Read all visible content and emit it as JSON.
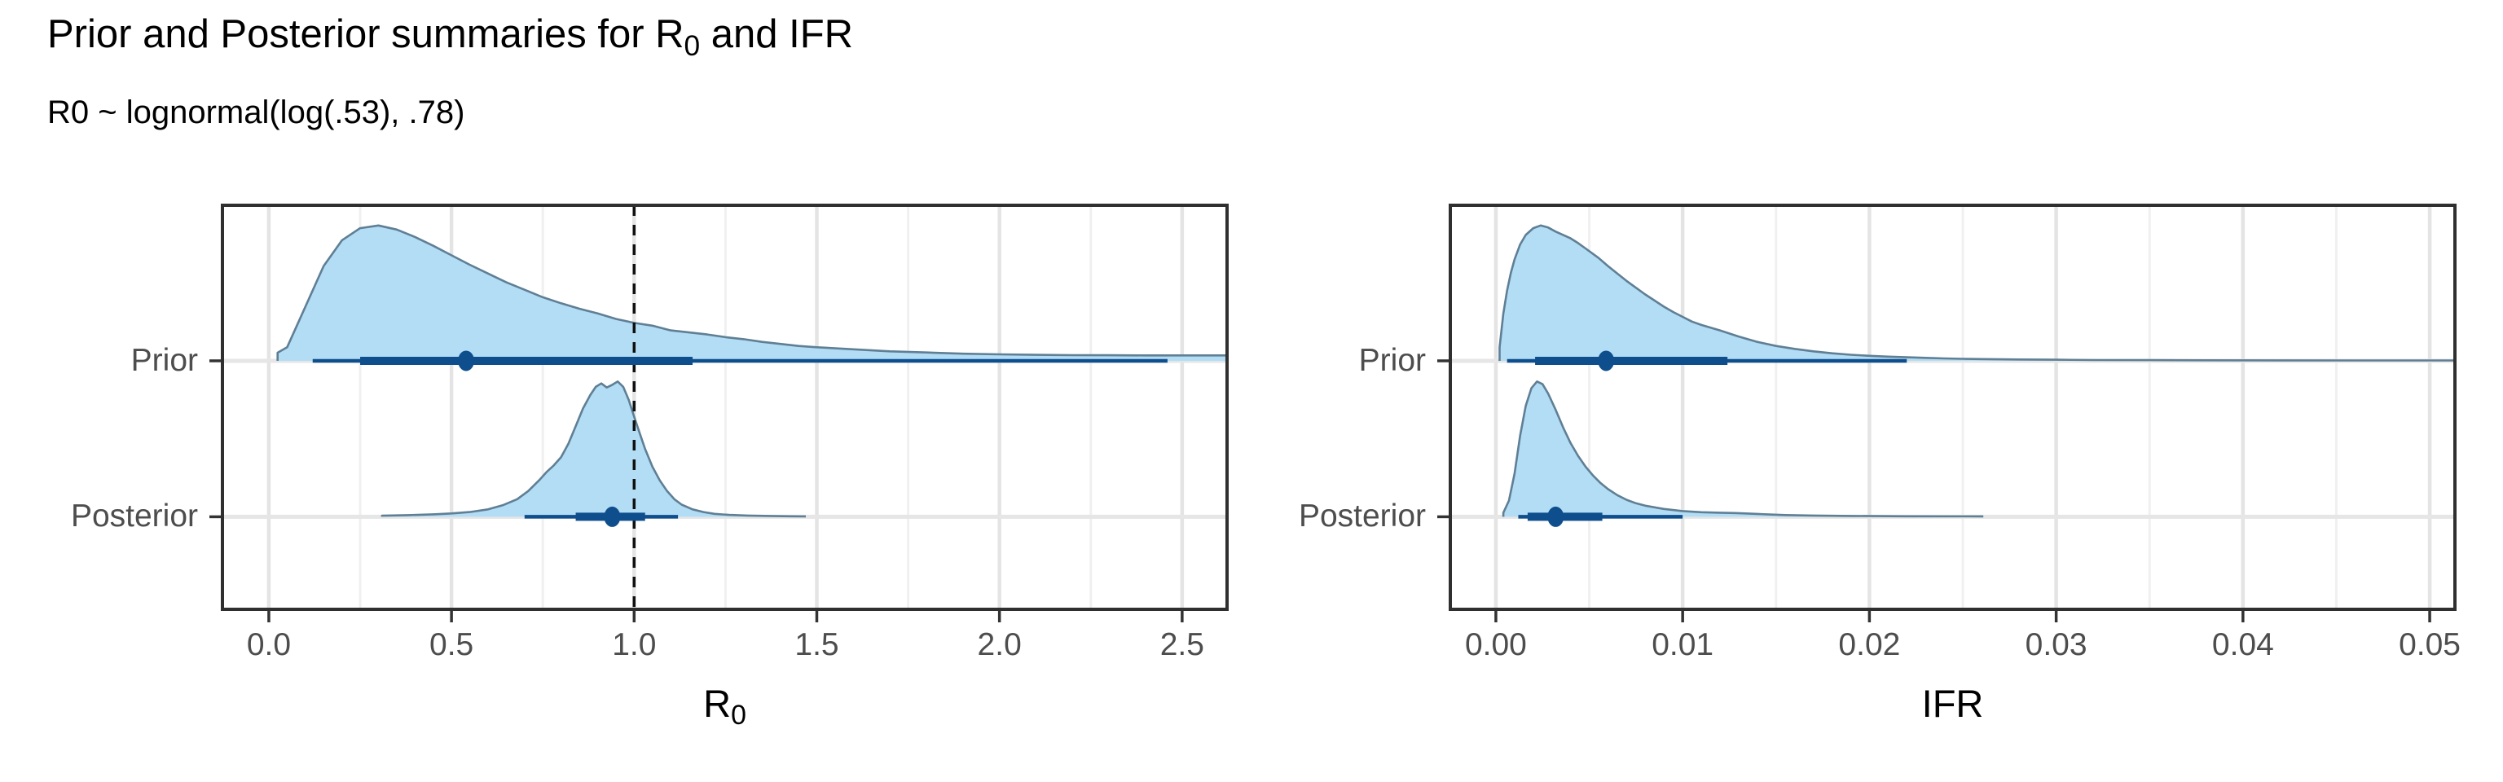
{
  "title_parts": [
    {
      "t": "Prior and Posterior summaries for R",
      "sub": false
    },
    {
      "t": "0",
      "sub": true
    },
    {
      "t": " and IFR",
      "sub": false
    }
  ],
  "subtitle": "R0 ~ lognormal(log(.53), .78)",
  "colors": {
    "density_fill": "#b3ddf5",
    "density_outline": "#5f7f95",
    "interval": "#0f4e8c",
    "grid_major": "#e4e4e4",
    "grid_minor": "#f0f0f0",
    "row_line": "#e6e6e6",
    "panel_border": "#2f2f2f",
    "tick_mark": "#333333",
    "axis_text": "#4d4d4d",
    "title_text": "#000000",
    "ref_line": "#111111",
    "background": "#ffffff"
  },
  "chart_data": [
    {
      "id": "r0",
      "type": "area",
      "title": "",
      "xlabel_parts": [
        {
          "t": "R",
          "sub": false
        },
        {
          "t": "0",
          "sub": true
        }
      ],
      "x_range": [
        -0.127,
        2.623
      ],
      "x_ticks": [
        0.0,
        0.5,
        1.0,
        1.5,
        2.0,
        2.5
      ],
      "x_tick_labels": [
        "0.0",
        "0.5",
        "1.0",
        "1.5",
        "2.0",
        "2.5"
      ],
      "ref_line": 1.0,
      "legend": "none",
      "grid": "on",
      "rows": [
        {
          "label": "Prior",
          "point": 0.54,
          "interval_66": [
            0.25,
            1.16
          ],
          "interval_95": [
            0.12,
            2.46
          ],
          "density": {
            "x": [
              0.024,
              0.05,
              0.1,
              0.15,
              0.2,
              0.25,
              0.3,
              0.35,
              0.4,
              0.45,
              0.5,
              0.55,
              0.6,
              0.65,
              0.7,
              0.75,
              0.8,
              0.85,
              0.9,
              0.95,
              1.0,
              1.05,
              1.1,
              1.15,
              1.2,
              1.25,
              1.3,
              1.35,
              1.4,
              1.45,
              1.5,
              1.6,
              1.7,
              1.8,
              1.9,
              2.0,
              2.1,
              2.2,
              2.3,
              2.4,
              2.5,
              2.62
            ],
            "h": [
              0.06,
              0.1,
              0.4,
              0.7,
              0.89,
              0.98,
              1.0,
              0.97,
              0.915,
              0.85,
              0.78,
              0.71,
              0.645,
              0.58,
              0.525,
              0.47,
              0.425,
              0.385,
              0.35,
              0.31,
              0.28,
              0.26,
              0.225,
              0.21,
              0.195,
              0.175,
              0.16,
              0.14,
              0.125,
              0.11,
              0.1,
              0.085,
              0.07,
              0.062,
              0.053,
              0.048,
              0.044,
              0.042,
              0.041,
              0.04,
              0.04,
              0.04
            ]
          }
        },
        {
          "label": "Posterior",
          "point": 0.94,
          "interval_66": [
            0.84,
            1.03
          ],
          "interval_95": [
            0.7,
            1.12
          ],
          "density": {
            "x": [
              0.31,
              0.38,
              0.45,
              0.5,
              0.55,
              0.6,
              0.64,
              0.68,
              0.71,
              0.74,
              0.76,
              0.78,
              0.8,
              0.82,
              0.84,
              0.86,
              0.88,
              0.895,
              0.91,
              0.925,
              0.94,
              0.955,
              0.97,
              0.985,
              1.0,
              1.015,
              1.03,
              1.05,
              1.07,
              1.09,
              1.11,
              1.13,
              1.16,
              1.19,
              1.22,
              1.26,
              1.31,
              1.37,
              1.43,
              1.47
            ],
            "h": [
              0.008,
              0.012,
              0.018,
              0.025,
              0.035,
              0.055,
              0.085,
              0.13,
              0.19,
              0.27,
              0.33,
              0.38,
              0.44,
              0.54,
              0.67,
              0.8,
              0.9,
              0.96,
              0.985,
              0.955,
              0.975,
              1.0,
              0.96,
              0.865,
              0.74,
              0.62,
              0.5,
              0.37,
              0.27,
              0.19,
              0.13,
              0.09,
              0.055,
              0.035,
              0.022,
              0.014,
              0.009,
              0.006,
              0.004,
              0.003
            ]
          }
        }
      ]
    },
    {
      "id": "ifr",
      "type": "area",
      "title": "",
      "xlabel_parts": [
        {
          "t": "IFR",
          "sub": false
        }
      ],
      "x_range": [
        -0.00244,
        0.05135
      ],
      "x_ticks": [
        0.0,
        0.01,
        0.02,
        0.03,
        0.04,
        0.05
      ],
      "x_tick_labels": [
        "0.00",
        "0.01",
        "0.02",
        "0.03",
        "0.04",
        "0.05"
      ],
      "ref_line": null,
      "legend": "none",
      "grid": "on",
      "rows": [
        {
          "label": "Prior",
          "point": 0.0059,
          "interval_66": [
            0.0021,
            0.0124
          ],
          "interval_95": [
            0.0006,
            0.022
          ],
          "density": {
            "x": [
              0.0002,
              0.0004,
              0.0006,
              0.0008,
              0.001,
              0.0013,
              0.0016,
              0.002,
              0.0024,
              0.0028,
              0.0032,
              0.0036,
              0.004,
              0.0044,
              0.0048,
              0.0055,
              0.006,
              0.0065,
              0.007,
              0.0075,
              0.008,
              0.0085,
              0.009,
              0.0095,
              0.01,
              0.0105,
              0.011,
              0.0115,
              0.012,
              0.013,
              0.014,
              0.015,
              0.016,
              0.017,
              0.018,
              0.019,
              0.02,
              0.021,
              0.022,
              0.023,
              0.024,
              0.025,
              0.026,
              0.028,
              0.03,
              0.032,
              0.035,
              0.038,
              0.042,
              0.046,
              0.0513
            ],
            "h": [
              0.1,
              0.35,
              0.52,
              0.65,
              0.75,
              0.86,
              0.93,
              0.98,
              1.0,
              0.985,
              0.955,
              0.93,
              0.905,
              0.87,
              0.83,
              0.76,
              0.7,
              0.645,
              0.59,
              0.54,
              0.49,
              0.445,
              0.4,
              0.36,
              0.325,
              0.29,
              0.265,
              0.245,
              0.225,
              0.18,
              0.14,
              0.11,
              0.088,
              0.07,
              0.056,
              0.045,
              0.037,
              0.031,
              0.026,
              0.022,
              0.018,
              0.015,
              0.013,
              0.01,
              0.008,
              0.006,
              0.005,
              0.004,
              0.0035,
              0.003,
              0.003
            ]
          }
        },
        {
          "label": "Posterior",
          "point": 0.0032,
          "interval_66": [
            0.0017,
            0.0057
          ],
          "interval_95": [
            0.0012,
            0.01
          ],
          "density": {
            "x": [
              0.0004,
              0.0007,
              0.001,
              0.0013,
              0.0016,
              0.0019,
              0.0022,
              0.0025,
              0.0028,
              0.0032,
              0.0036,
              0.004,
              0.0044,
              0.0048,
              0.0052,
              0.0056,
              0.006,
              0.0065,
              0.007,
              0.0075,
              0.008,
              0.009,
              0.01,
              0.011,
              0.012,
              0.0128,
              0.0135,
              0.0145,
              0.0155,
              0.017,
              0.019,
              0.022,
              0.0261
            ],
            "h": [
              0.03,
              0.12,
              0.32,
              0.6,
              0.82,
              0.95,
              1.0,
              0.98,
              0.91,
              0.79,
              0.66,
              0.545,
              0.45,
              0.37,
              0.305,
              0.25,
              0.205,
              0.16,
              0.125,
              0.1,
              0.082,
              0.058,
              0.042,
              0.034,
              0.03,
              0.028,
              0.024,
              0.018,
              0.013,
              0.009,
              0.006,
              0.004,
              0.003
            ]
          }
        }
      ]
    }
  ]
}
